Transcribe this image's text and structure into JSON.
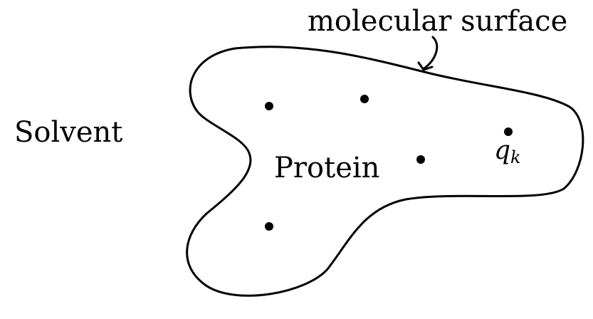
{
  "labels": {
    "solvent": "Solvent",
    "protein": "Protein",
    "surface": "molecular surface",
    "charge": "q",
    "charge_subscript": "k"
  },
  "colors": {
    "stroke": "#000000",
    "background": "#ffffff"
  },
  "charges": [
    {
      "name": "charge-1"
    },
    {
      "name": "charge-2"
    },
    {
      "name": "charge-3"
    },
    {
      "name": "charge-4"
    },
    {
      "name": "charge-k"
    }
  ]
}
